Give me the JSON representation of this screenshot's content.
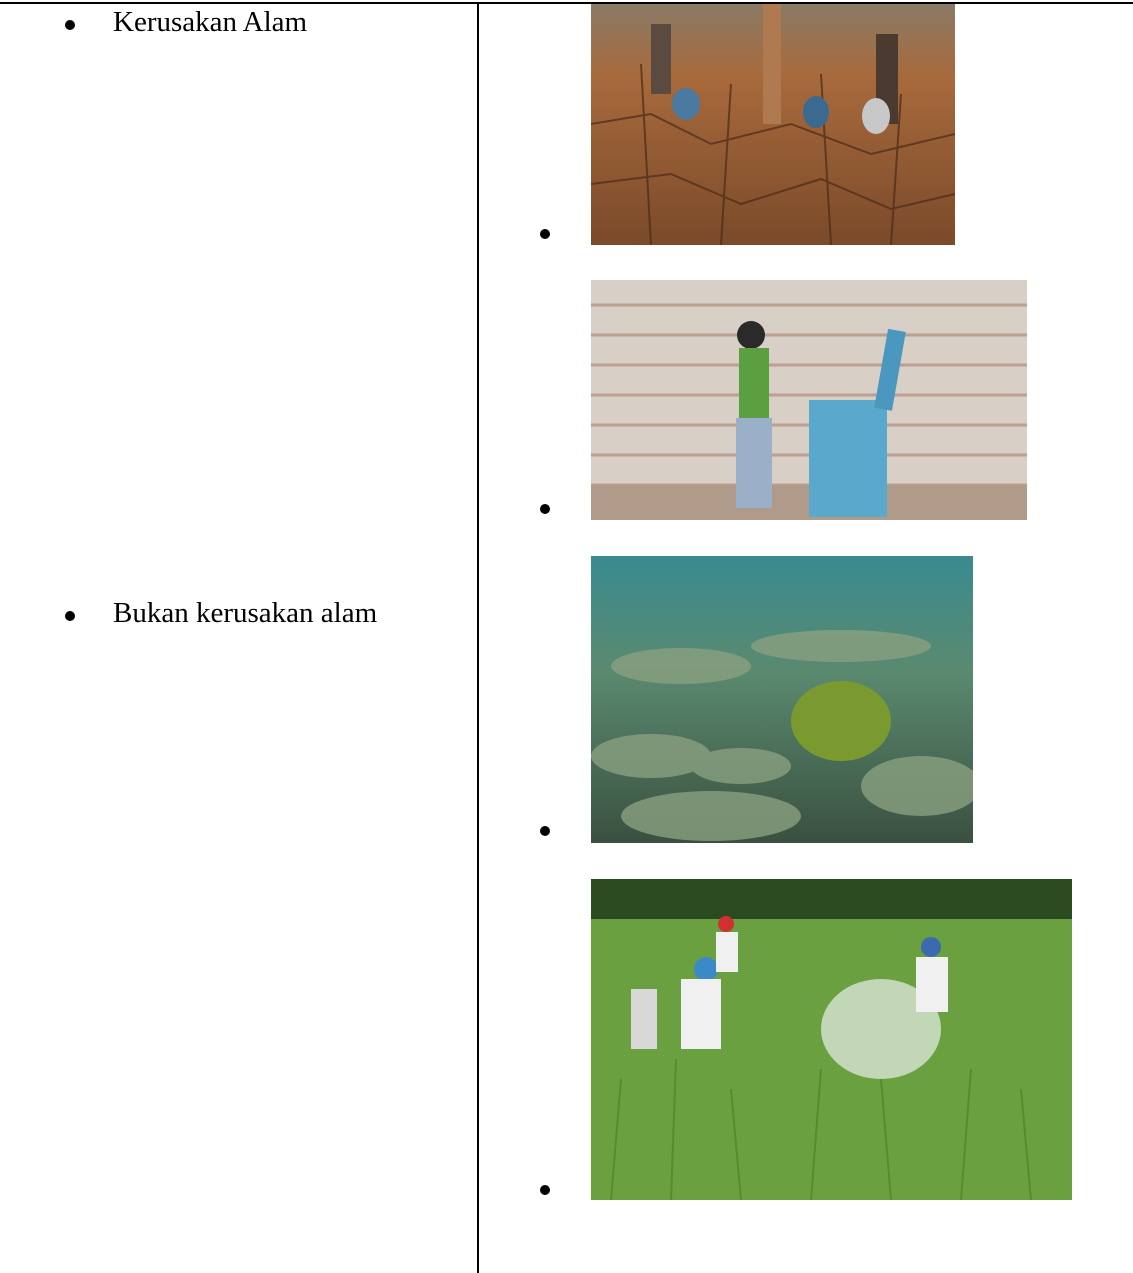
{
  "left_items": [
    "Kerusakan Alam",
    "Bukan kerusakan alam"
  ]
}
